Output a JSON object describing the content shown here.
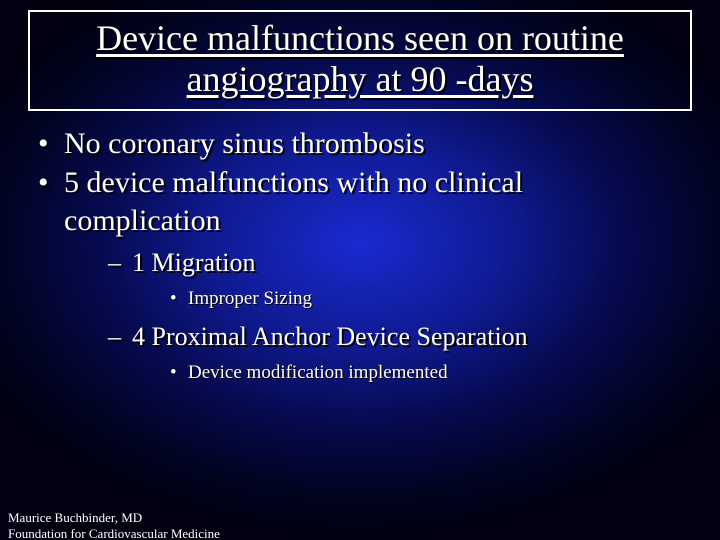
{
  "title": "Device malfunctions seen on routine angiography at 90 -days",
  "bullets": {
    "b1": "No coronary sinus thrombosis",
    "b2": "5 device malfunctions with no clinical complication",
    "sub1": "1 Migration",
    "sub1a": "Improper Sizing",
    "sub2": "4 Proximal Anchor Device Separation",
    "sub2a": "Device modification implemented"
  },
  "footer": {
    "line1": "Maurice Buchbinder, MD",
    "line2": "Foundation for Cardiovascular Medicine"
  },
  "colors": {
    "text": "#ffffff",
    "shadow": "#000000",
    "border": "#ffffff",
    "bg_center": "#1a2ad0",
    "bg_edge": "#000010"
  }
}
